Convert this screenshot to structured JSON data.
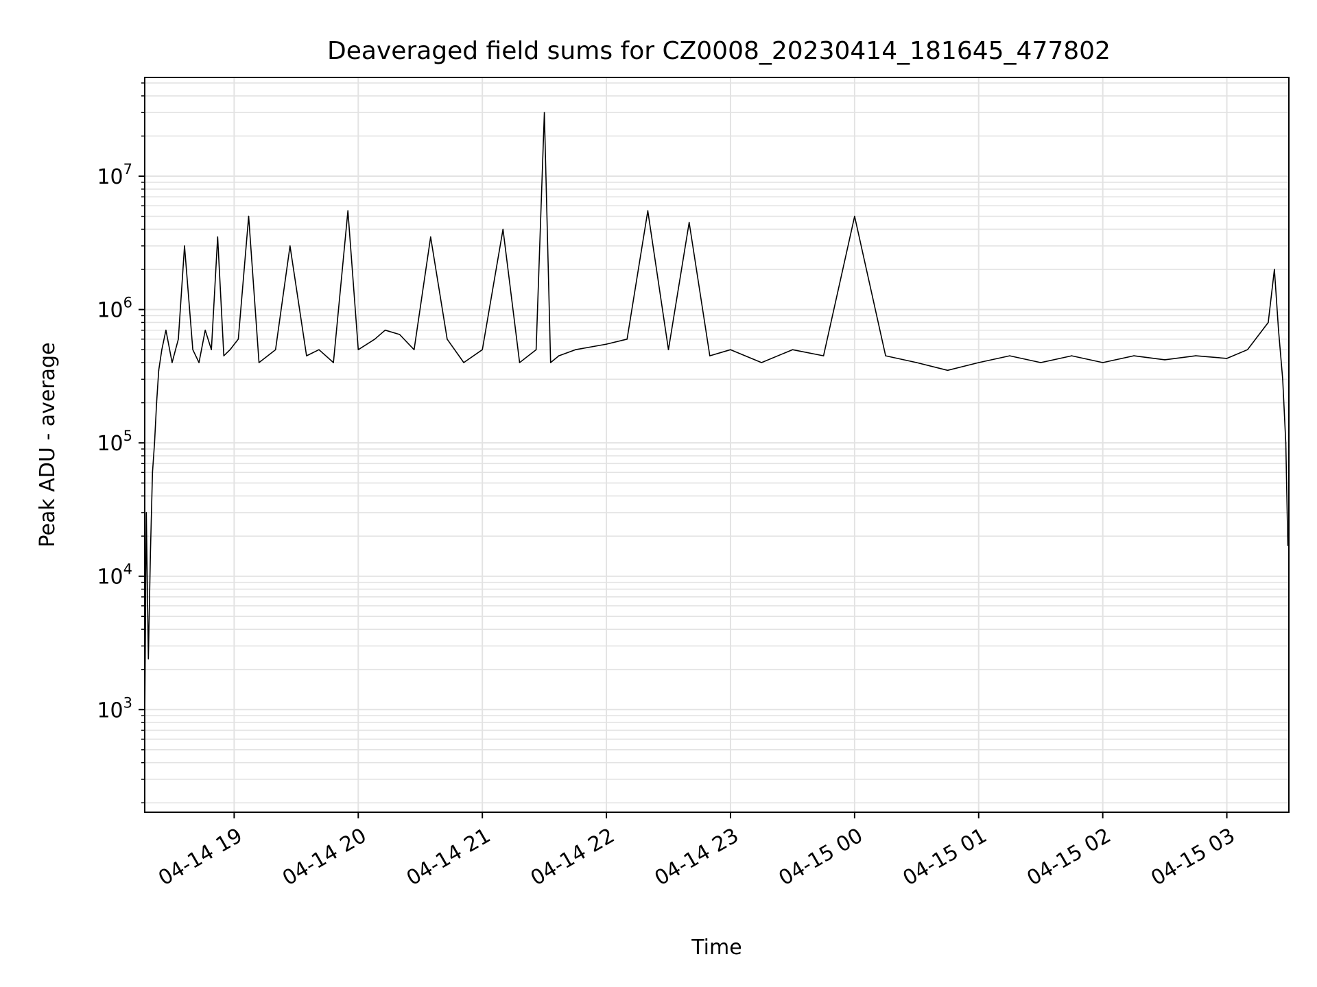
{
  "chart_data": {
    "type": "line",
    "title": "Deaveraged field sums for CZ0008_20230414_181645_477802",
    "xlabel": "Time",
    "ylabel": "Peak ADU - average",
    "yscale": "log",
    "xlim": [
      "2023-04-14 18:16:45",
      "2023-04-15 03:30:00"
    ],
    "ylim": [
      170,
      55000000
    ],
    "grid": true,
    "legend": "none",
    "line_color": "#000000",
    "x_ticks": [
      {
        "value": "2023-04-14 19:00",
        "label": "04-14 19"
      },
      {
        "value": "2023-04-14 20:00",
        "label": "04-14 20"
      },
      {
        "value": "2023-04-14 21:00",
        "label": "04-14 21"
      },
      {
        "value": "2023-04-14 22:00",
        "label": "04-14 22"
      },
      {
        "value": "2023-04-14 23:00",
        "label": "04-14 23"
      },
      {
        "value": "2023-04-15 00:00",
        "label": "04-15 00"
      },
      {
        "value": "2023-04-15 01:00",
        "label": "04-15 01"
      },
      {
        "value": "2023-04-15 02:00",
        "label": "04-15 02"
      },
      {
        "value": "2023-04-15 03:00",
        "label": "04-15 03"
      }
    ],
    "y_ticks": [
      {
        "value": 1000,
        "base": "10",
        "exp": "3"
      },
      {
        "value": 10000,
        "base": "10",
        "exp": "4"
      },
      {
        "value": 100000,
        "base": "10",
        "exp": "5"
      },
      {
        "value": 1000000,
        "base": "10",
        "exp": "6"
      },
      {
        "value": 10000000,
        "base": "10",
        "exp": "7"
      }
    ],
    "series": [
      {
        "values": {
          "x": [
            "2023-04-14 18:16:45",
            "2023-04-14 18:17:30",
            "2023-04-14 18:18:30",
            "2023-04-14 18:19:30",
            "2023-04-14 18:20:30",
            "2023-04-14 18:21:30",
            "2023-04-14 18:22:30",
            "2023-04-14 18:23:30",
            "2023-04-14 18:25:00",
            "2023-04-14 18:27:00",
            "2023-04-14 18:30:00",
            "2023-04-14 18:33:00",
            "2023-04-14 18:36:00",
            "2023-04-14 18:40:00",
            "2023-04-14 18:43:00",
            "2023-04-14 18:46:00",
            "2023-04-14 18:49:00",
            "2023-04-14 18:52:00",
            "2023-04-14 18:55:00",
            "2023-04-14 18:58:00",
            "2023-04-14 19:02:00",
            "2023-04-14 19:07:00",
            "2023-04-14 19:12:00",
            "2023-04-14 19:20:00",
            "2023-04-14 19:27:00",
            "2023-04-14 19:35:00",
            "2023-04-14 19:41:00",
            "2023-04-14 19:48:00",
            "2023-04-14 19:55:00",
            "2023-04-14 20:00:00",
            "2023-04-14 20:08:00",
            "2023-04-14 20:13:00",
            "2023-04-14 20:20:00",
            "2023-04-14 20:27:00",
            "2023-04-14 20:35:00",
            "2023-04-14 20:43:00",
            "2023-04-14 20:51:00",
            "2023-04-14 21:00:00",
            "2023-04-14 21:10:00",
            "2023-04-14 21:18:00",
            "2023-04-14 21:26:00",
            "2023-04-14 21:30:00",
            "2023-04-14 21:33:00",
            "2023-04-14 21:37:00",
            "2023-04-14 21:45:00",
            "2023-04-14 22:00:00",
            "2023-04-14 22:10:00",
            "2023-04-14 22:20:00",
            "2023-04-14 22:30:00",
            "2023-04-14 22:40:00",
            "2023-04-14 22:50:00",
            "2023-04-14 23:00:00",
            "2023-04-14 23:15:00",
            "2023-04-14 23:30:00",
            "2023-04-14 23:45:00",
            "2023-04-15 00:00:00",
            "2023-04-15 00:15:00",
            "2023-04-15 00:30:00",
            "2023-04-15 00:45:00",
            "2023-04-15 01:00:00",
            "2023-04-15 01:15:00",
            "2023-04-15 01:30:00",
            "2023-04-15 01:45:00",
            "2023-04-15 02:00:00",
            "2023-04-15 02:15:00",
            "2023-04-15 02:30:00",
            "2023-04-15 02:45:00",
            "2023-04-15 03:00:00",
            "2023-04-15 03:10:00",
            "2023-04-15 03:20:00",
            "2023-04-15 03:23:00",
            "2023-04-15 03:25:00",
            "2023-04-15 03:27:00",
            "2023-04-15 03:28:30",
            "2023-04-15 03:29:30"
          ],
          "y": [
            800,
            30000,
            2400,
            15000,
            60000,
            100000,
            200000,
            350000,
            500000,
            700000,
            400000,
            600000,
            3000000,
            500000,
            400000,
            700000,
            500000,
            3500000,
            450000,
            500000,
            600000,
            5000000,
            400000,
            500000,
            3000000,
            450000,
            500000,
            400000,
            5500000,
            500000,
            600000,
            700000,
            650000,
            500000,
            3500000,
            600000,
            400000,
            500000,
            4000000,
            400000,
            500000,
            30000000,
            400000,
            450000,
            500000,
            550000,
            600000,
            5500000,
            500000,
            4500000,
            450000,
            500000,
            400000,
            500000,
            450000,
            5000000,
            450000,
            400000,
            350000,
            400000,
            450000,
            400000,
            450000,
            400000,
            450000,
            420000,
            450000,
            430000,
            500000,
            800000,
            2000000,
            700000,
            300000,
            100000,
            17000
          ]
        }
      }
    ]
  }
}
